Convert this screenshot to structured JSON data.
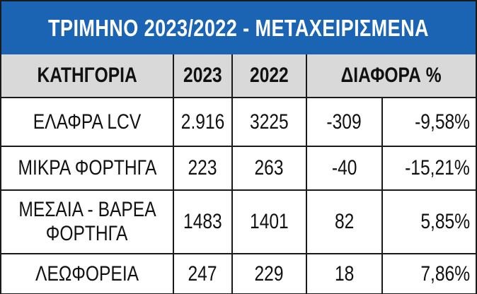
{
  "title": "ΤΡΙΜΗΝΟ 2023/2022 - ΜΕΤΑΧΕΙΡΙΣΜΕΝΑ",
  "headers": {
    "category": "ΚΑΤΗΓΟΡΙΑ",
    "year_2023": "2023",
    "year_2022": "2022",
    "difference": "ΔΙΑΦΟΡΑ %"
  },
  "rows": [
    {
      "category": "ΕΛΑΦΡΑ LCV",
      "y2023": "2.916",
      "y2022": "3225",
      "diff": "-309",
      "pct": "-9,58%"
    },
    {
      "category": "ΜΙΚΡΑ ΦΟΡΤΗΓΑ",
      "y2023": "223",
      "y2022": "263",
      "diff": "-40",
      "pct": "-15,21%"
    },
    {
      "category_line1": "ΜΕΣΑΙΑ - ΒΑΡΕΑ",
      "category_line2": "ΦΟΡΤΗΓΑ",
      "y2023": "1483",
      "y2022": "1401",
      "diff": "82",
      "pct": "5,85%"
    },
    {
      "category": "ΛΕΩΦΟΡΕΙΑ",
      "y2023": "247",
      "y2022": "229",
      "diff": "18",
      "pct": "7,86%"
    }
  ],
  "colors": {
    "title_background": "#1b64b4",
    "header_background": "#d9d9d9",
    "border": "#1a1a1a"
  }
}
